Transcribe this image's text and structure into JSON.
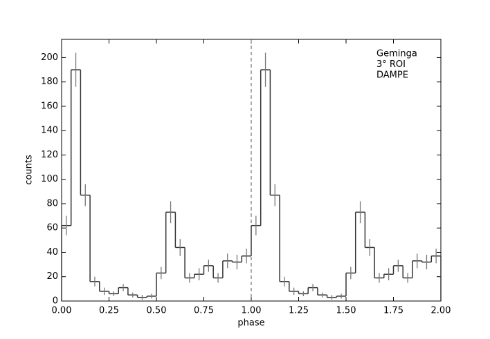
{
  "chart_data": {
    "type": "histogram",
    "xlabel": "phase",
    "ylabel": "counts",
    "annotation": [
      "Geminga",
      "3° ROI",
      "DAMPE"
    ],
    "bins": [
      0,
      0.05,
      0.1,
      0.15,
      0.2,
      0.25,
      0.3,
      0.35,
      0.4,
      0.45,
      0.5,
      0.55,
      0.6,
      0.65,
      0.7,
      0.75,
      0.8,
      0.85,
      0.9,
      0.95,
      1.0,
      1.05,
      1.1,
      1.15,
      1.2,
      1.25,
      1.3,
      1.35,
      1.4,
      1.45,
      1.5,
      1.55,
      1.6,
      1.65,
      1.7,
      1.75,
      1.8,
      1.85,
      1.9,
      1.95,
      2.0
    ],
    "counts": [
      62,
      190,
      87,
      16,
      8,
      6,
      11,
      5,
      3,
      4,
      23,
      73,
      44,
      19,
      22,
      29,
      19,
      33,
      32,
      37,
      62,
      190,
      87,
      16,
      8,
      6,
      11,
      5,
      3,
      4,
      23,
      73,
      44,
      19,
      22,
      29,
      19,
      33,
      32,
      37
    ],
    "errors": [
      8,
      14,
      9,
      4,
      3,
      2,
      3,
      2,
      2,
      2,
      5,
      9,
      7,
      4,
      5,
      5,
      4,
      6,
      6,
      6,
      8,
      14,
      9,
      4,
      3,
      2,
      3,
      2,
      2,
      2,
      5,
      9,
      7,
      4,
      5,
      5,
      4,
      6,
      6,
      6
    ],
    "color": "#333333",
    "error_color": "#777777",
    "vlines": [
      1.0
    ],
    "xlim": [
      0,
      2
    ],
    "ylim": [
      0,
      215
    ],
    "xticks": [
      {
        "value": 0,
        "label": "0.00"
      },
      {
        "value": 0.25,
        "label": "0.25"
      },
      {
        "value": 0.5,
        "label": "0.50"
      },
      {
        "value": 0.75,
        "label": "0.75"
      },
      {
        "value": 1.0,
        "label": "1.00"
      },
      {
        "value": 1.25,
        "label": "1.25"
      },
      {
        "value": 1.5,
        "label": "1.50"
      },
      {
        "value": 1.75,
        "label": "1.75"
      },
      {
        "value": 2.0,
        "label": "2.00"
      }
    ],
    "yticks": [
      0,
      20,
      40,
      60,
      80,
      100,
      120,
      140,
      160,
      180,
      200
    ]
  }
}
